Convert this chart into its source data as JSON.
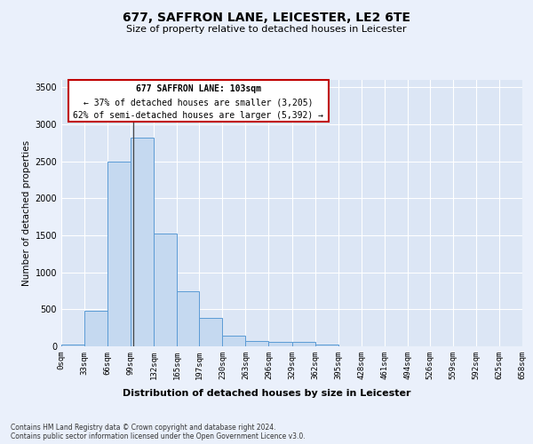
{
  "title": "677, SAFFRON LANE, LEICESTER, LE2 6TE",
  "subtitle": "Size of property relative to detached houses in Leicester",
  "xlabel": "Distribution of detached houses by size in Leicester",
  "ylabel": "Number of detached properties",
  "footer_line1": "Contains HM Land Registry data © Crown copyright and database right 2024.",
  "footer_line2": "Contains public sector information licensed under the Open Government Licence v3.0.",
  "annotation_line1": "677 SAFFRON LANE: 103sqm",
  "annotation_line2": "← 37% of detached houses are smaller (3,205)",
  "annotation_line3": "62% of semi-detached houses are larger (5,392) →",
  "bar_values": [
    20,
    480,
    2500,
    2820,
    1520,
    750,
    385,
    140,
    75,
    55,
    55,
    20,
    0,
    0,
    0,
    0,
    0,
    0,
    0,
    0
  ],
  "bin_edges": [
    0,
    33,
    66,
    99,
    132,
    165,
    197,
    230,
    263,
    296,
    329,
    362,
    395,
    428,
    461,
    494,
    526,
    559,
    592,
    625,
    658
  ],
  "tick_labels": [
    "0sqm",
    "33sqm",
    "66sqm",
    "99sqm",
    "132sqm",
    "165sqm",
    "197sqm",
    "230sqm",
    "263sqm",
    "296sqm",
    "329sqm",
    "362sqm",
    "395sqm",
    "428sqm",
    "461sqm",
    "494sqm",
    "526sqm",
    "559sqm",
    "592sqm",
    "625sqm",
    "658sqm"
  ],
  "bar_color": "#c5d9f0",
  "bar_edge_color": "#5b9bd5",
  "vline_x": 103,
  "background_color": "#eaf0fb",
  "axes_background_color": "#dce6f5",
  "grid_color": "#ffffff",
  "annotation_box_facecolor": "#ffffff",
  "annotation_box_edgecolor": "#c00000",
  "ylim": [
    0,
    3600
  ],
  "yticks": [
    0,
    500,
    1000,
    1500,
    2000,
    2500,
    3000,
    3500
  ],
  "title_fontsize": 10,
  "subtitle_fontsize": 8,
  "ylabel_fontsize": 7.5,
  "xlabel_fontsize": 8,
  "tick_fontsize": 6.5,
  "ytick_fontsize": 7,
  "footer_fontsize": 5.5,
  "ann_fontsize": 7
}
